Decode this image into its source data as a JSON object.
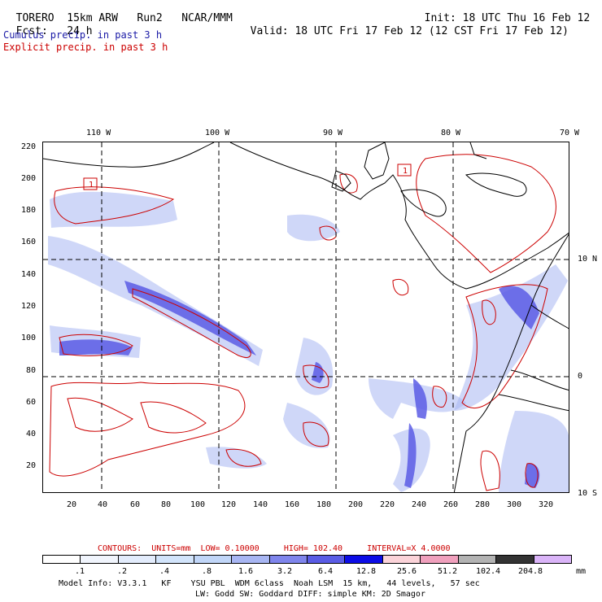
{
  "header": {
    "model": "TORERO",
    "resolution": "15km ARW",
    "run": "Run2",
    "center": "NCAR/MMM",
    "init_label": "Init:",
    "init": "18 UTC Thu 16 Feb 12",
    "fcst_label": "Fcst:",
    "fcst": "24 h",
    "valid_label": "Valid:",
    "valid": "18 UTC Fri 17 Feb 12 (12 CST Fri 17 Feb 12)",
    "field1": "Cumulus precip. in past 3 h",
    "field2": "Explicit precip. in past 3 h",
    "field1_color": "#1a1aa6",
    "field2_color": "#cc0000"
  },
  "map": {
    "top_lon_labels": [
      "110 W",
      "100 W",
      "90 W",
      "80 W",
      "70 W"
    ],
    "right_lat_labels": [
      "10 N",
      "0",
      "10 S"
    ],
    "left_y_ticks": [
      "220",
      "200",
      "180",
      "160",
      "140",
      "120",
      "100",
      "80",
      "60",
      "40",
      "20"
    ],
    "bottom_x_ticks": [
      "20",
      "40",
      "60",
      "80",
      "100",
      "120",
      "140",
      "160",
      "180",
      "200",
      "220",
      "240",
      "260",
      "280",
      "300",
      "320"
    ],
    "low_markers": [
      "1",
      "1"
    ]
  },
  "contours": {
    "label": "CONTOURS:",
    "units": "UNITS=mm",
    "low": "LOW= 0.10000",
    "high": "HIGH= 102.40",
    "interval": "INTERVAL=X 4.0000"
  },
  "colorbar": {
    "labels": [
      ".1",
      ".2",
      ".4",
      ".8",
      "1.6",
      "3.2",
      "6.4",
      "12.8",
      "25.6",
      "51.2",
      "102.4",
      "204.8"
    ],
    "unit": "mm",
    "colors": [
      "#ffffff",
      "#f1f5fd",
      "#e3ecfc",
      "#d2e4fb",
      "#c1d6f8",
      "#a8b6f3",
      "#7f85ec",
      "#5a5ce5",
      "#0c0ce6",
      "#fbd3d9",
      "#f0a0bd",
      "#b3b3b3",
      "#333333",
      "#dab4f8"
    ]
  },
  "footer": {
    "line1": "Model Info: V3.3.1   KF    YSU PBL  WDM 6class  Noah LSM  15 km,   44 levels,   57 sec",
    "line2": "LW: Godd SW: Goddard DIFF: simple KM: 2D Smagor"
  }
}
